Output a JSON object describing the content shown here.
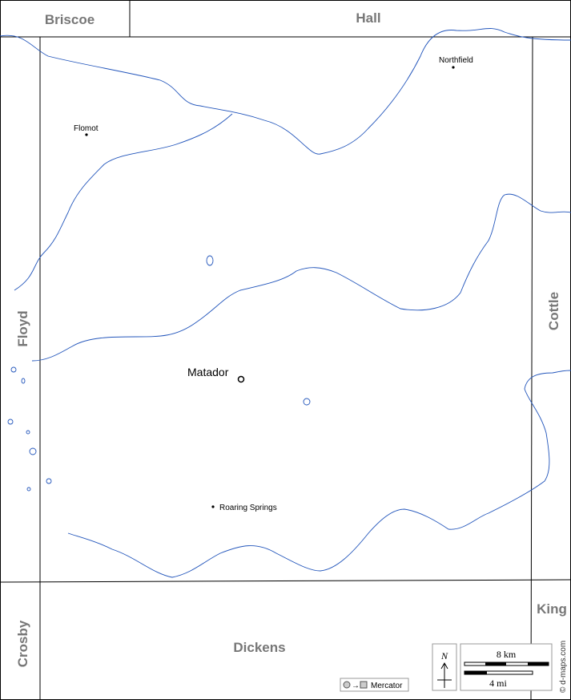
{
  "neighbors": [
    {
      "name": "Briscoe"
    },
    {
      "name": "Hall"
    },
    {
      "name": "Floyd"
    },
    {
      "name": "Cottle"
    },
    {
      "name": "Crosby"
    },
    {
      "name": "Dickens"
    },
    {
      "name": "King"
    }
  ],
  "towns": [
    {
      "name": "Flomot"
    },
    {
      "name": "Northfield"
    },
    {
      "name": "Matador"
    },
    {
      "name": "Roaring Springs"
    }
  ],
  "scale": {
    "km": "8 km",
    "mi": "4 mi"
  },
  "compass": "N",
  "projection": "Mercator",
  "credit": "© d-maps.com"
}
